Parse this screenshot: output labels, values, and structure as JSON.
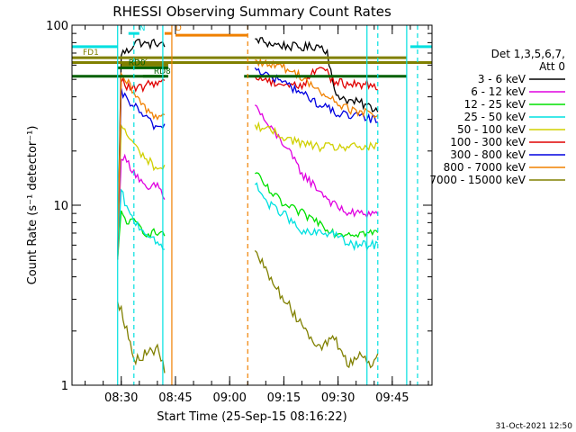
{
  "chart_data": {
    "type": "line",
    "title": "RHESSI Observing Summary Count Rates",
    "xlabel": "Start Time (25-Sep-15 08:16:22)",
    "ylabel": "Count Rate (s⁻¹ detector⁻¹)",
    "y_scale": "log",
    "ylim": [
      1,
      100
    ],
    "y_ticks": [
      {
        "value": 1,
        "label": "1"
      },
      {
        "value": 10,
        "label": "10"
      },
      {
        "value": 100,
        "label": "100"
      }
    ],
    "xlim": [
      "08:16:22",
      "09:56:00"
    ],
    "x_ticks": [
      "08:30",
      "08:45",
      "09:00",
      "09:15",
      "09:30",
      "09:45"
    ],
    "legend": {
      "title": "Det 1,3,5,6,7,",
      "subtitle": "Att 0",
      "position": "right"
    },
    "series": [
      {
        "name": "3 - 6 keV",
        "color": "#000000",
        "points": [
          [
            "08:29",
            5
          ],
          [
            "08:30",
            70
          ],
          [
            "08:32",
            72
          ],
          [
            "08:34",
            82
          ],
          [
            "08:37",
            78
          ],
          [
            "08:40",
            80
          ],
          [
            "08:42",
            76
          ],
          [
            "09:07",
            84
          ],
          [
            "09:11",
            79
          ],
          [
            "09:15",
            77
          ],
          [
            "09:20",
            75
          ],
          [
            "09:25",
            77
          ],
          [
            "09:27",
            72
          ],
          [
            "09:29",
            42
          ],
          [
            "09:33",
            38
          ],
          [
            "09:36",
            37
          ],
          [
            "09:39",
            35
          ],
          [
            "09:41",
            34
          ]
        ]
      },
      {
        "name": "6 - 12 keV",
        "color": "#e000e0",
        "points": [
          [
            "08:29",
            5
          ],
          [
            "08:30",
            19
          ],
          [
            "08:32",
            17
          ],
          [
            "08:34",
            15
          ],
          [
            "08:37",
            12
          ],
          [
            "08:40",
            13
          ],
          [
            "08:42",
            11
          ],
          [
            "09:07",
            36
          ],
          [
            "09:11",
            27
          ],
          [
            "09:15",
            22
          ],
          [
            "09:20",
            15
          ],
          [
            "09:25",
            12
          ],
          [
            "09:29",
            10
          ],
          [
            "09:33",
            9
          ],
          [
            "09:36",
            9
          ],
          [
            "09:39",
            9
          ],
          [
            "09:41",
            9
          ]
        ]
      },
      {
        "name": "12 - 25 keV",
        "color": "#00e000",
        "points": [
          [
            "08:29",
            5
          ],
          [
            "08:30",
            9
          ],
          [
            "08:32",
            8
          ],
          [
            "08:34",
            8
          ],
          [
            "08:37",
            7
          ],
          [
            "08:40",
            7
          ],
          [
            "08:42",
            7
          ],
          [
            "09:07",
            15
          ],
          [
            "09:11",
            12
          ],
          [
            "09:15",
            10
          ],
          [
            "09:20",
            9
          ],
          [
            "09:25",
            8
          ],
          [
            "09:29",
            7
          ],
          [
            "09:33",
            7
          ],
          [
            "09:36",
            7
          ],
          [
            "09:39",
            7
          ],
          [
            "09:41",
            7
          ]
        ]
      },
      {
        "name": "25 - 50 keV",
        "color": "#00e0e0",
        "points": [
          [
            "08:29",
            5
          ],
          [
            "08:30",
            12
          ],
          [
            "08:32",
            9
          ],
          [
            "08:34",
            8
          ],
          [
            "08:37",
            7
          ],
          [
            "08:40",
            6
          ],
          [
            "08:42",
            6
          ],
          [
            "09:07",
            13
          ],
          [
            "09:11",
            10
          ],
          [
            "09:15",
            9
          ],
          [
            "09:20",
            7
          ],
          [
            "09:25",
            7
          ],
          [
            "09:29",
            7
          ],
          [
            "09:33",
            6
          ],
          [
            "09:36",
            6
          ],
          [
            "09:39",
            6
          ],
          [
            "09:41",
            6
          ]
        ]
      },
      {
        "name": "50 - 100 keV",
        "color": "#d0d000",
        "points": [
          [
            "08:29",
            5
          ],
          [
            "08:30",
            28
          ],
          [
            "08:32",
            24
          ],
          [
            "08:34",
            21
          ],
          [
            "08:37",
            18
          ],
          [
            "08:40",
            16
          ],
          [
            "08:42",
            16
          ],
          [
            "09:07",
            28
          ],
          [
            "09:11",
            26
          ],
          [
            "09:15",
            24
          ],
          [
            "09:20",
            22
          ],
          [
            "09:25",
            21
          ],
          [
            "09:29",
            21
          ],
          [
            "09:33",
            21
          ],
          [
            "09:36",
            21
          ],
          [
            "09:39",
            21
          ],
          [
            "09:41",
            21
          ]
        ]
      },
      {
        "name": "100 - 300 keV",
        "color": "#e00000",
        "points": [
          [
            "08:29",
            5
          ],
          [
            "08:30",
            50
          ],
          [
            "08:32",
            45
          ],
          [
            "08:34",
            44
          ],
          [
            "08:37",
            46
          ],
          [
            "08:40",
            49
          ],
          [
            "08:42",
            48
          ],
          [
            "09:07",
            52
          ],
          [
            "09:11",
            49
          ],
          [
            "09:15",
            47
          ],
          [
            "09:20",
            46
          ],
          [
            "09:25",
            60
          ],
          [
            "09:27",
            55
          ],
          [
            "09:29",
            48
          ],
          [
            "09:33",
            47
          ],
          [
            "09:36",
            47
          ],
          [
            "09:39",
            47
          ],
          [
            "09:41",
            46
          ]
        ]
      },
      {
        "name": "300 - 800 keV",
        "color": "#0000e0",
        "points": [
          [
            "08:29",
            5
          ],
          [
            "08:30",
            42
          ],
          [
            "08:32",
            38
          ],
          [
            "08:34",
            35
          ],
          [
            "08:37",
            30
          ],
          [
            "08:40",
            27
          ],
          [
            "08:42",
            28
          ],
          [
            "09:07",
            58
          ],
          [
            "09:11",
            52
          ],
          [
            "09:15",
            48
          ],
          [
            "09:20",
            42
          ],
          [
            "09:25",
            36
          ],
          [
            "09:29",
            33
          ],
          [
            "09:33",
            31
          ],
          [
            "09:36",
            31
          ],
          [
            "09:39",
            30
          ],
          [
            "09:41",
            30
          ]
        ]
      },
      {
        "name": "800 - 7000 keV",
        "color": "#f08000",
        "points": [
          [
            "08:29",
            5
          ],
          [
            "08:30",
            52
          ],
          [
            "08:32",
            47
          ],
          [
            "08:34",
            40
          ],
          [
            "08:37",
            34
          ],
          [
            "08:40",
            31
          ],
          [
            "08:42",
            32
          ],
          [
            "09:07",
            64
          ],
          [
            "09:11",
            61
          ],
          [
            "09:15",
            58
          ],
          [
            "09:20",
            52
          ],
          [
            "09:25",
            42
          ],
          [
            "09:29",
            38
          ],
          [
            "09:33",
            34
          ],
          [
            "09:36",
            33
          ],
          [
            "09:39",
            32
          ],
          [
            "09:41",
            32
          ]
        ]
      },
      {
        "name": "7000 - 15000 keV",
        "color": "#808000",
        "points": [
          [
            "08:29",
            2.9
          ],
          [
            "08:30",
            2.7
          ],
          [
            "08:32",
            1.8
          ],
          [
            "08:34",
            1.4
          ],
          [
            "08:37",
            1.5
          ],
          [
            "08:40",
            1.6
          ],
          [
            "08:42",
            1.2
          ],
          [
            "09:07",
            5.6
          ],
          [
            "09:11",
            4.0
          ],
          [
            "09:15",
            3.0
          ],
          [
            "09:20",
            2.2
          ],
          [
            "09:25",
            1.6
          ],
          [
            "09:29",
            1.8
          ],
          [
            "09:33",
            1.3
          ],
          [
            "09:36",
            1.5
          ],
          [
            "09:39",
            1.3
          ],
          [
            "09:41",
            1.5
          ]
        ]
      }
    ],
    "flags": [
      {
        "label": "FD1",
        "color": "#808000",
        "value": 66,
        "start": "08:16:22",
        "end": "09:49:00"
      },
      {
        "label": "",
        "color": "#808000",
        "value": 62,
        "start": "08:16:22",
        "end": "09:56:00"
      },
      {
        "label": "FD2",
        "color": "#808000",
        "value": 60,
        "start": "08:30:00",
        "end": "08:43:00"
      },
      {
        "label": "RD0",
        "color": "#006000",
        "value": 58,
        "start": "08:29:00",
        "end": "08:43:00"
      },
      {
        "label": "",
        "color": "#006000",
        "value": 52,
        "start": "08:16:22",
        "end": "08:42:00"
      },
      {
        "label": "",
        "color": "#006000",
        "value": 52,
        "start": "09:04:00",
        "end": "09:49:00"
      },
      {
        "label": "RD8",
        "color": "#006000",
        "value": 52,
        "start": "08:36:00",
        "end": "08:43:00"
      },
      {
        "label": "",
        "color": "#00e0e0",
        "value": 76,
        "start": "08:16:22",
        "end": "08:29:00"
      },
      {
        "label": "",
        "color": "#00e0e0",
        "value": 76,
        "start": "09:50:00",
        "end": "09:56:00"
      },
      {
        "label": "",
        "color": "#f08000",
        "value": 88,
        "start": "08:45:00",
        "end": "09:05:00"
      },
      {
        "label": "N",
        "color": "#00e0e0",
        "value": 90,
        "start": "08:32:00",
        "end": "08:35:00"
      },
      {
        "label": "D",
        "color": "#f08000",
        "value": 90,
        "start": "08:42:00",
        "end": "08:44:00"
      }
    ],
    "vertical_lines": [
      {
        "time": "08:29:00",
        "color": "#00e0e0",
        "style": "solid"
      },
      {
        "time": "08:33:30",
        "color": "#00e0e0",
        "style": "dashed"
      },
      {
        "time": "08:41:30",
        "color": "#00e0e0",
        "style": "solid"
      },
      {
        "time": "08:44:00",
        "color": "#f08000",
        "style": "solid"
      },
      {
        "time": "09:05:00",
        "color": "#f08000",
        "style": "dashed"
      },
      {
        "time": "09:38:00",
        "color": "#00e0e0",
        "style": "solid"
      },
      {
        "time": "09:41:00",
        "color": "#00e0e0",
        "style": "dashed"
      },
      {
        "time": "09:49:00",
        "color": "#00e0e0",
        "style": "solid"
      },
      {
        "time": "09:52:00",
        "color": "#00e0e0",
        "style": "dashed"
      }
    ],
    "grid": false,
    "timestamp": "31-Oct-2021 12:50"
  }
}
